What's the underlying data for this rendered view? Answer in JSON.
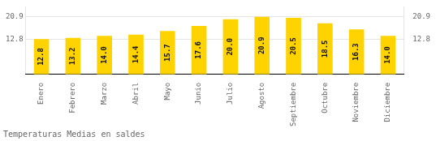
{
  "chart_data": {
    "type": "bar",
    "title": "Temperaturas Medias en saldes",
    "categories": [
      "Enero",
      "Febrero",
      "Marzo",
      "Abril",
      "Mayo",
      "Junio",
      "Julio",
      "Agosto",
      "Septiembre",
      "Octubre",
      "Noviembre",
      "Diciembre"
    ],
    "values": [
      12.8,
      13.2,
      14.0,
      14.4,
      15.7,
      17.6,
      20.0,
      20.9,
      20.5,
      18.5,
      16.3,
      14.0
    ],
    "value_labels": [
      "12.8",
      "13.2",
      "14.0",
      "14.4",
      "15.7",
      "17.6",
      "20.0",
      "20.9",
      "20.5",
      "18.5",
      "16.3",
      "14.0"
    ],
    "data_labels": true,
    "color": "#FFD300",
    "ylim": [
      0,
      24.5
    ],
    "yticks": [
      12.8,
      20.9
    ],
    "y2lim": [
      0,
      24.5
    ],
    "y2ticks": [
      12.8,
      20.9
    ],
    "grid": true
  }
}
